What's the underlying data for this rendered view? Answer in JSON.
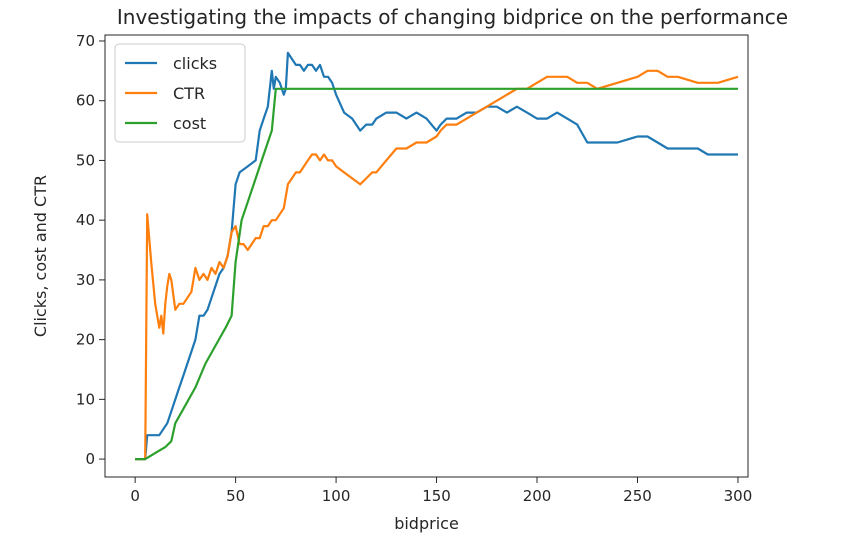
{
  "chart_data": {
    "type": "line",
    "title": "Investigating the impacts of changing bidprice on the performance",
    "xlabel": "bidprice",
    "ylabel": "Clicks, cost and CTR",
    "xlim": [
      -15,
      305
    ],
    "ylim": [
      -3,
      71
    ],
    "xticks": [
      0,
      50,
      100,
      150,
      200,
      250,
      300
    ],
    "yticks": [
      0,
      10,
      20,
      30,
      40,
      50,
      60,
      70
    ],
    "grid": false,
    "legend_position": "top-left",
    "series": [
      {
        "name": "clicks",
        "color": "#1f77b4",
        "x": [
          0,
          5,
          6,
          12,
          14,
          16,
          18,
          20,
          22,
          24,
          26,
          28,
          30,
          32,
          34,
          36,
          38,
          40,
          42,
          44,
          46,
          48,
          50,
          52,
          56,
          60,
          62,
          64,
          66,
          68,
          69,
          70,
          72,
          74,
          75,
          76,
          78,
          80,
          82,
          84,
          86,
          88,
          90,
          92,
          94,
          96,
          98,
          100,
          104,
          108,
          112,
          115,
          118,
          120,
          125,
          130,
          135,
          140,
          145,
          150,
          152,
          155,
          158,
          160,
          165,
          170,
          175,
          180,
          185,
          190,
          195,
          200,
          205,
          210,
          215,
          220,
          225,
          230,
          240,
          250,
          255,
          260,
          265,
          270,
          280,
          285,
          290,
          300
        ],
        "y": [
          0,
          0,
          4,
          4,
          5,
          6,
          8,
          10,
          12,
          14,
          16,
          18,
          20,
          24,
          24,
          25,
          27,
          29,
          31,
          32,
          34,
          38,
          46,
          48,
          49,
          50,
          55,
          57,
          59,
          65,
          62,
          64,
          63,
          61,
          62,
          68,
          67,
          66,
          66,
          65,
          66,
          66,
          65,
          66,
          64,
          64,
          63,
          61,
          58,
          57,
          55,
          56,
          56,
          57,
          58,
          58,
          57,
          58,
          57,
          55,
          56,
          57,
          57,
          57,
          58,
          58,
          59,
          59,
          58,
          59,
          58,
          57,
          57,
          58,
          57,
          56,
          53,
          53,
          53,
          54,
          54,
          53,
          52,
          52,
          52,
          51,
          51,
          51
        ]
      },
      {
        "name": "CTR",
        "color": "#ff7f0e",
        "x": [
          0,
          5,
          6,
          8,
          10,
          12,
          13,
          14,
          15,
          16,
          17,
          18,
          20,
          22,
          24,
          26,
          28,
          30,
          32,
          34,
          36,
          38,
          40,
          42,
          44,
          46,
          48,
          50,
          52,
          54,
          56,
          58,
          60,
          62,
          64,
          66,
          68,
          70,
          72,
          74,
          76,
          78,
          80,
          82,
          84,
          86,
          88,
          90,
          92,
          94,
          96,
          98,
          100,
          104,
          108,
          112,
          115,
          118,
          120,
          125,
          130,
          135,
          140,
          145,
          150,
          152,
          155,
          158,
          160,
          165,
          170,
          175,
          180,
          185,
          190,
          195,
          200,
          205,
          210,
          215,
          220,
          225,
          230,
          240,
          250,
          255,
          260,
          265,
          270,
          280,
          290,
          300
        ],
        "y": [
          0,
          0,
          41,
          33,
          26,
          22,
          24,
          21,
          26,
          29,
          31,
          30,
          25,
          26,
          26,
          27,
          28,
          32,
          30,
          31,
          30,
          32,
          31,
          33,
          32,
          34,
          38,
          39,
          36,
          36,
          35,
          36,
          37,
          37,
          39,
          39,
          40,
          40,
          41,
          42,
          46,
          47,
          48,
          48,
          49,
          50,
          51,
          51,
          50,
          51,
          50,
          50,
          49,
          48,
          47,
          46,
          47,
          48,
          48,
          50,
          52,
          52,
          53,
          53,
          54,
          55,
          56,
          56,
          56,
          57,
          58,
          59,
          60,
          61,
          62,
          62,
          63,
          64,
          64,
          64,
          63,
          63,
          62,
          63,
          64,
          65,
          65,
          64,
          64,
          63,
          63,
          64
        ]
      },
      {
        "name": "cost",
        "color": "#2ca02c",
        "x": [
          0,
          5,
          10,
          15,
          18,
          20,
          25,
          30,
          35,
          40,
          45,
          48,
          50,
          53,
          56,
          60,
          64,
          68,
          70,
          75,
          100,
          150,
          200,
          250,
          300
        ],
        "y": [
          0,
          0,
          1,
          2,
          3,
          6,
          9,
          12,
          16,
          19,
          22,
          24,
          33,
          40,
          43,
          47,
          51,
          55,
          62,
          62,
          62,
          62,
          62,
          62,
          62
        ]
      }
    ]
  }
}
